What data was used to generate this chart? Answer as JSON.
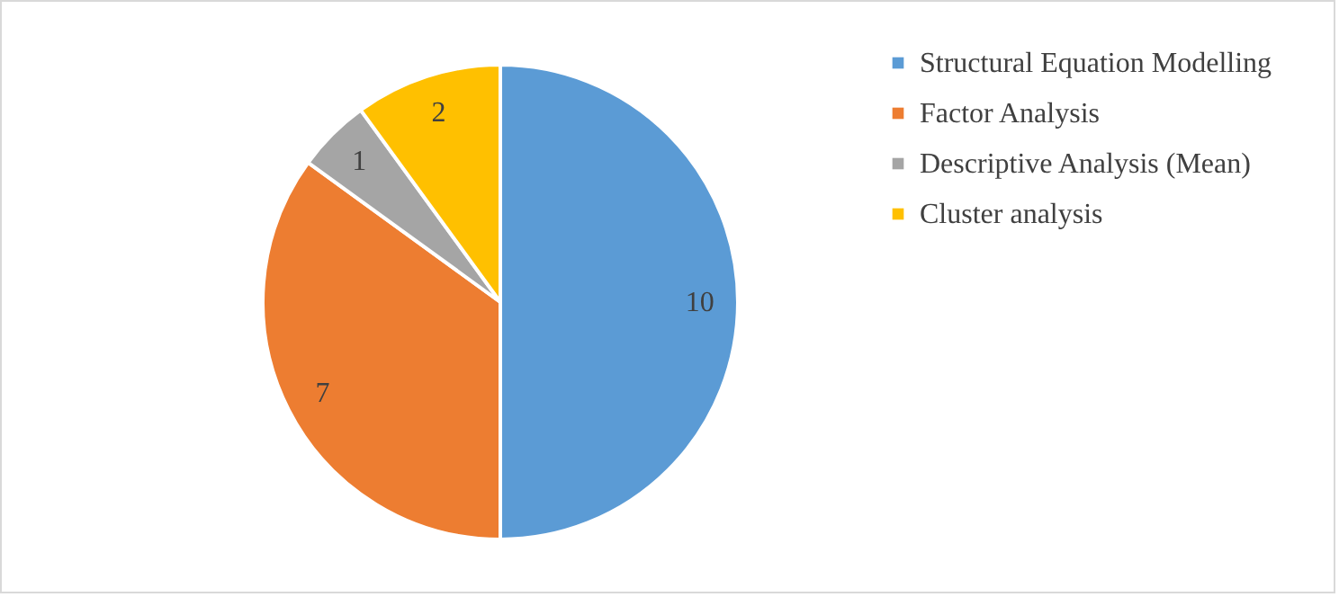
{
  "chart_data": {
    "type": "pie",
    "categories": [
      "Structural Equation Modelling",
      "Factor Analysis",
      "Descriptive Analysis (Mean)",
      "Cluster analysis"
    ],
    "values": [
      10,
      7,
      1,
      2
    ],
    "colors": [
      "#5b9bd5",
      "#ed7d31",
      "#a5a5a5",
      "#ffc000"
    ],
    "data_labels": true,
    "legend": "right"
  }
}
